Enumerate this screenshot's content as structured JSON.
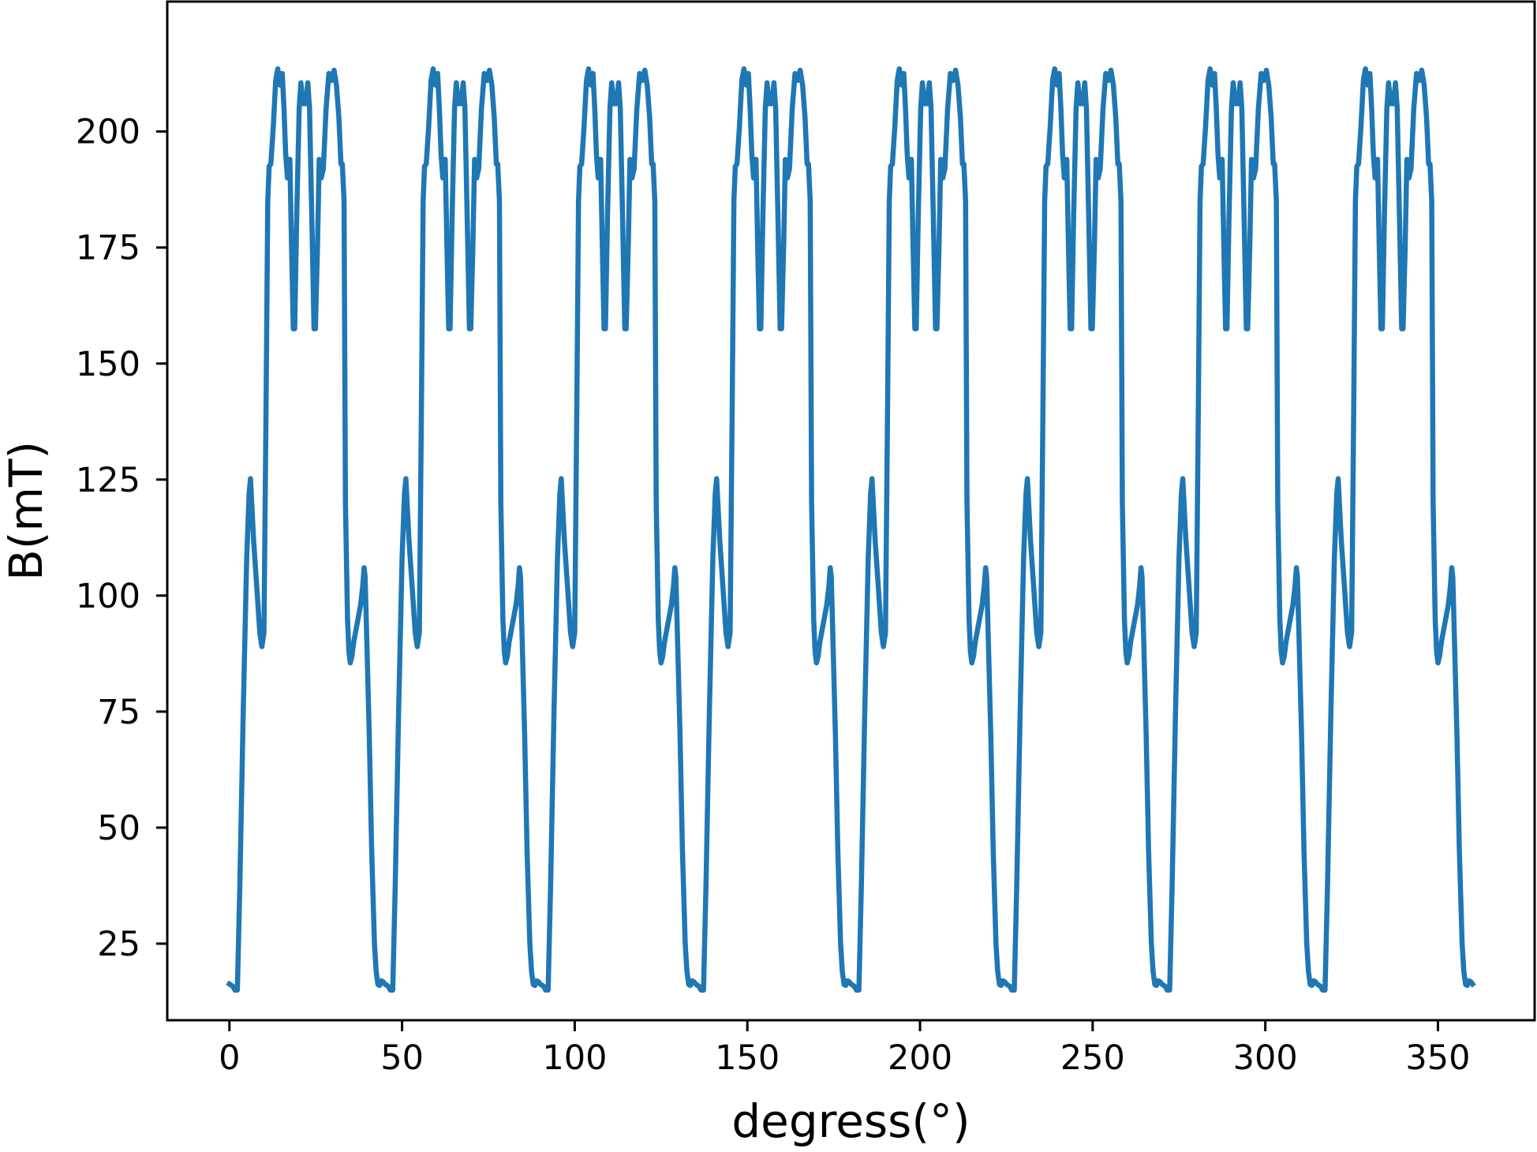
{
  "chart_data": {
    "type": "line",
    "title": "",
    "xlabel": "degress(°)",
    "ylabel": "B(mT)",
    "xlim": [
      -18,
      378
    ],
    "ylim": [
      8.5,
      228
    ],
    "xticks": [
      0,
      50,
      100,
      150,
      200,
      250,
      300,
      350
    ],
    "yticks": [
      25,
      50,
      75,
      100,
      125,
      150,
      175,
      200
    ],
    "grid": false,
    "legend": "none",
    "period_deg": 45,
    "series": [
      {
        "color": "#1f77b4",
        "period_points": [
          [
            0.0,
            16.3
          ],
          [
            1.0,
            15.8
          ],
          [
            1.6,
            15.0
          ],
          [
            2.3,
            15.0
          ],
          [
            3.0,
            37.0
          ],
          [
            4.0,
            75.0
          ],
          [
            5.0,
            108.0
          ],
          [
            5.7,
            122.0
          ],
          [
            6.1,
            125.2
          ],
          [
            7.0,
            112.0
          ],
          [
            8.0,
            101.0
          ],
          [
            8.8,
            92.0
          ],
          [
            9.4,
            89.0
          ],
          [
            10.0,
            92.0
          ],
          [
            10.6,
            140.0
          ],
          [
            11.1,
            185.0
          ],
          [
            11.5,
            192.5
          ],
          [
            12.0,
            193.0
          ],
          [
            12.7,
            201.0
          ],
          [
            13.4,
            211.0
          ],
          [
            14.0,
            213.5
          ],
          [
            14.7,
            210.0
          ],
          [
            15.3,
            212.5
          ],
          [
            15.8,
            205.0
          ],
          [
            16.3,
            195.0
          ],
          [
            16.8,
            190.0
          ],
          [
            17.5,
            194.0
          ],
          [
            18.0,
            175.0
          ],
          [
            18.5,
            157.5
          ],
          [
            18.9,
            157.5
          ],
          [
            19.5,
            182.0
          ],
          [
            20.2,
            205.0
          ],
          [
            20.7,
            210.5
          ],
          [
            21.3,
            206.0
          ],
          [
            22.1,
            206.0
          ],
          [
            22.7,
            210.5
          ],
          [
            23.2,
            205.0
          ],
          [
            23.9,
            180.0
          ],
          [
            24.5,
            157.5
          ],
          [
            24.9,
            157.5
          ],
          [
            25.5,
            175.0
          ],
          [
            26.0,
            194.0
          ],
          [
            26.6,
            190.0
          ],
          [
            27.2,
            192.0
          ],
          [
            28.0,
            205.0
          ],
          [
            28.8,
            212.5
          ],
          [
            29.6,
            211.0
          ],
          [
            30.3,
            213.2
          ],
          [
            31.0,
            210.0
          ],
          [
            31.7,
            203.0
          ],
          [
            32.3,
            193.0
          ],
          [
            32.7,
            193.0
          ],
          [
            33.2,
            185.0
          ],
          [
            33.6,
            120.0
          ],
          [
            34.2,
            95.0
          ],
          [
            34.6,
            88.0
          ],
          [
            35.0,
            85.5
          ],
          [
            35.5,
            87.0
          ],
          [
            36.0,
            90.0
          ],
          [
            37.0,
            94.0
          ],
          [
            38.0,
            98.0
          ],
          [
            38.6,
            102.0
          ],
          [
            39.0,
            106.0
          ],
          [
            39.3,
            104.0
          ],
          [
            39.8,
            90.0
          ],
          [
            40.5,
            70.0
          ],
          [
            41.2,
            45.0
          ],
          [
            42.0,
            25.0
          ],
          [
            42.5,
            19.0
          ],
          [
            43.0,
            16.2
          ],
          [
            43.5,
            16.0
          ],
          [
            44.0,
            17.0
          ],
          [
            44.5,
            16.8
          ],
          [
            45.0,
            16.3
          ]
        ]
      }
    ]
  }
}
